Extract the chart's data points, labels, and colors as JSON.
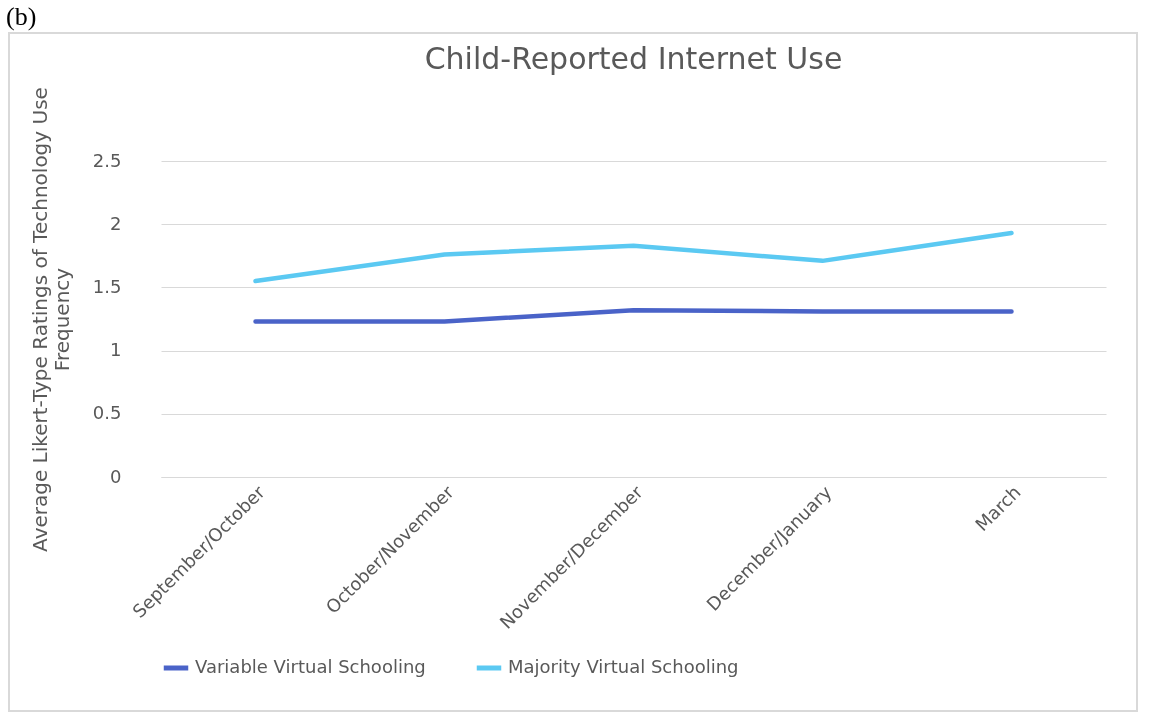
{
  "chart_data": {
    "type": "line",
    "title": "Child-Reported Internet Use",
    "ylabel": "Average Likert-Type Ratings of Technology Use Frequency",
    "annotations": [
      "(b)"
    ],
    "categories": [
      "September/October",
      "October/November",
      "November/December",
      "December/January",
      "March"
    ],
    "series": [
      {
        "name": "Variable Virtual Schooling",
        "color": "#4a63c8",
        "values": [
          1.23,
          1.23,
          1.32,
          1.31,
          1.31
        ]
      },
      {
        "name": "Majority Virtual Schooling",
        "color": "#5bc9f2",
        "values": [
          1.55,
          1.76,
          1.83,
          1.71,
          1.93
        ]
      }
    ],
    "ylim": [
      0,
      2.5
    ],
    "yticks": [
      0,
      0.5,
      1,
      1.5,
      2,
      2.5
    ],
    "grid": "y",
    "legend": "bottom",
    "marker": "none",
    "line_style": "solid"
  }
}
